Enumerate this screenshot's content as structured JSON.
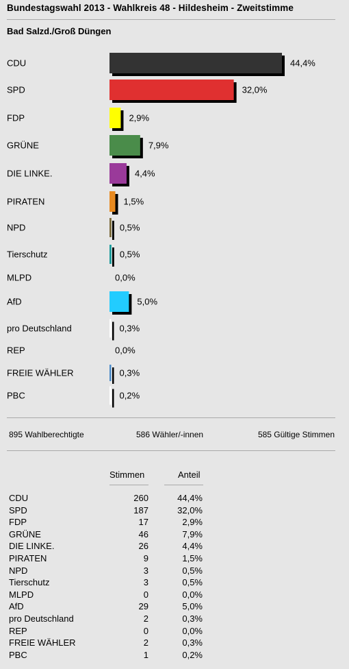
{
  "header": {
    "title": "Bundestagswahl 2013 - Wahlkreis 48 - Hildesheim - Zweitstimme",
    "subtitle": "Bad Salzd./Groß Düngen"
  },
  "chart_data": {
    "type": "bar",
    "orientation": "horizontal",
    "categories": [
      "CDU",
      "SPD",
      "FDP",
      "GRÜNE",
      "DIE LINKE.",
      "PIRATEN",
      "NPD",
      "Tierschutz",
      "MLPD",
      "AfD",
      "pro Deutschland",
      "REP",
      "FREIE WÄHLER",
      "PBC"
    ],
    "values": [
      44.4,
      32.0,
      2.9,
      7.9,
      4.4,
      1.5,
      0.5,
      0.5,
      0.0,
      5.0,
      0.3,
      0.0,
      0.3,
      0.2
    ],
    "labels": [
      "44,4%",
      "32,0%",
      "2,9%",
      "7,9%",
      "4,4%",
      "1,5%",
      "0,5%",
      "0,5%",
      "0,0%",
      "5,0%",
      "0,3%",
      "0,0%",
      "0,3%",
      "0,2%"
    ],
    "colors": [
      "#333333",
      "#e03030",
      "#ffff00",
      "#4a8c4a",
      "#9a3a9a",
      "#e88a20",
      "#7a6a3a",
      "#1a9a9a",
      "#888888",
      "#22ccff",
      "#ffffff",
      "#888888",
      "#4a8ac8",
      "#ffffff"
    ],
    "xlim": [
      0,
      44.4
    ],
    "grid": false,
    "legend": "none"
  },
  "summary": {
    "eligible": "895 Wahlberechtigte",
    "voters": "586 Wähler/-innen",
    "valid": "585 Gültige Stimmen"
  },
  "table": {
    "col_votes": "Stimmen",
    "col_share": "Anteil",
    "rows": [
      {
        "party": "CDU",
        "votes": "260",
        "share": "44,4%"
      },
      {
        "party": "SPD",
        "votes": "187",
        "share": "32,0%"
      },
      {
        "party": "FDP",
        "votes": "17",
        "share": "2,9%"
      },
      {
        "party": "GRÜNE",
        "votes": "46",
        "share": "7,9%"
      },
      {
        "party": "DIE LINKE.",
        "votes": "26",
        "share": "4,4%"
      },
      {
        "party": "PIRATEN",
        "votes": "9",
        "share": "1,5%"
      },
      {
        "party": "NPD",
        "votes": "3",
        "share": "0,5%"
      },
      {
        "party": "Tierschutz",
        "votes": "3",
        "share": "0,5%"
      },
      {
        "party": "MLPD",
        "votes": "0",
        "share": "0,0%"
      },
      {
        "party": "AfD",
        "votes": "29",
        "share": "5,0%"
      },
      {
        "party": "pro Deutschland",
        "votes": "2",
        "share": "0,3%"
      },
      {
        "party": "REP",
        "votes": "0",
        "share": "0,0%"
      },
      {
        "party": "FREIE WÄHLER",
        "votes": "2",
        "share": "0,3%"
      },
      {
        "party": "PBC",
        "votes": "1",
        "share": "0,2%"
      }
    ]
  }
}
